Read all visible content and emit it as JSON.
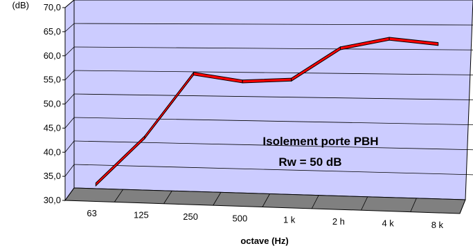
{
  "chart_data": {
    "type": "line",
    "title": "",
    "xlabel": "octave (Hz)",
    "ylabel": "(dB)",
    "categories": [
      "63",
      "125",
      "250",
      "500",
      "1 k",
      "2 h",
      "4 k",
      "8 k"
    ],
    "series": [
      {
        "values": [
          31.8,
          42.0,
          55.5,
          54.0,
          54.5,
          61.0,
          63.0,
          62.0
        ]
      }
    ],
    "ylim": [
      30,
      70
    ],
    "yticks": [
      "30,0",
      "35,0",
      "40,0",
      "45,0",
      "50,0",
      "55,0",
      "60,0",
      "65,0",
      "70,0"
    ],
    "grid": true,
    "annotation": [
      "Isolement porte PBH",
      "Rw = 50 dB"
    ],
    "colors": {
      "wall": "#ccccff",
      "floor": "#808080",
      "line": "#ff0000",
      "line_edge": "#000000",
      "grid": "#000000"
    }
  }
}
